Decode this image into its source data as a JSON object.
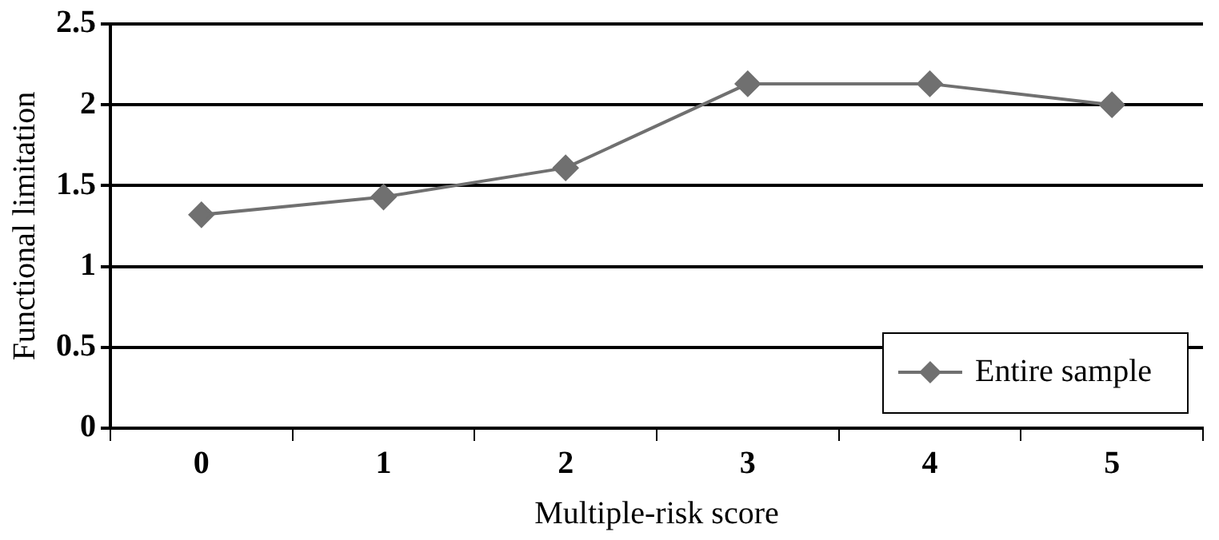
{
  "chart_data": {
    "type": "line",
    "xlabel": "Multiple-risk score",
    "ylabel": "Functional limitation",
    "categories": [
      "0",
      "1",
      "2",
      "3",
      "4",
      "5"
    ],
    "series": [
      {
        "name": "Entire sample",
        "color": "#707070",
        "values": [
          1.32,
          1.43,
          1.61,
          2.13,
          2.13,
          2.0
        ]
      }
    ],
    "ylim": [
      0,
      2.5
    ],
    "yticks": [
      0,
      0.5,
      1,
      1.5,
      2,
      2.5
    ],
    "grid": "y",
    "legend": "bottom right",
    "marker": "diamond",
    "line_style": "solid"
  }
}
